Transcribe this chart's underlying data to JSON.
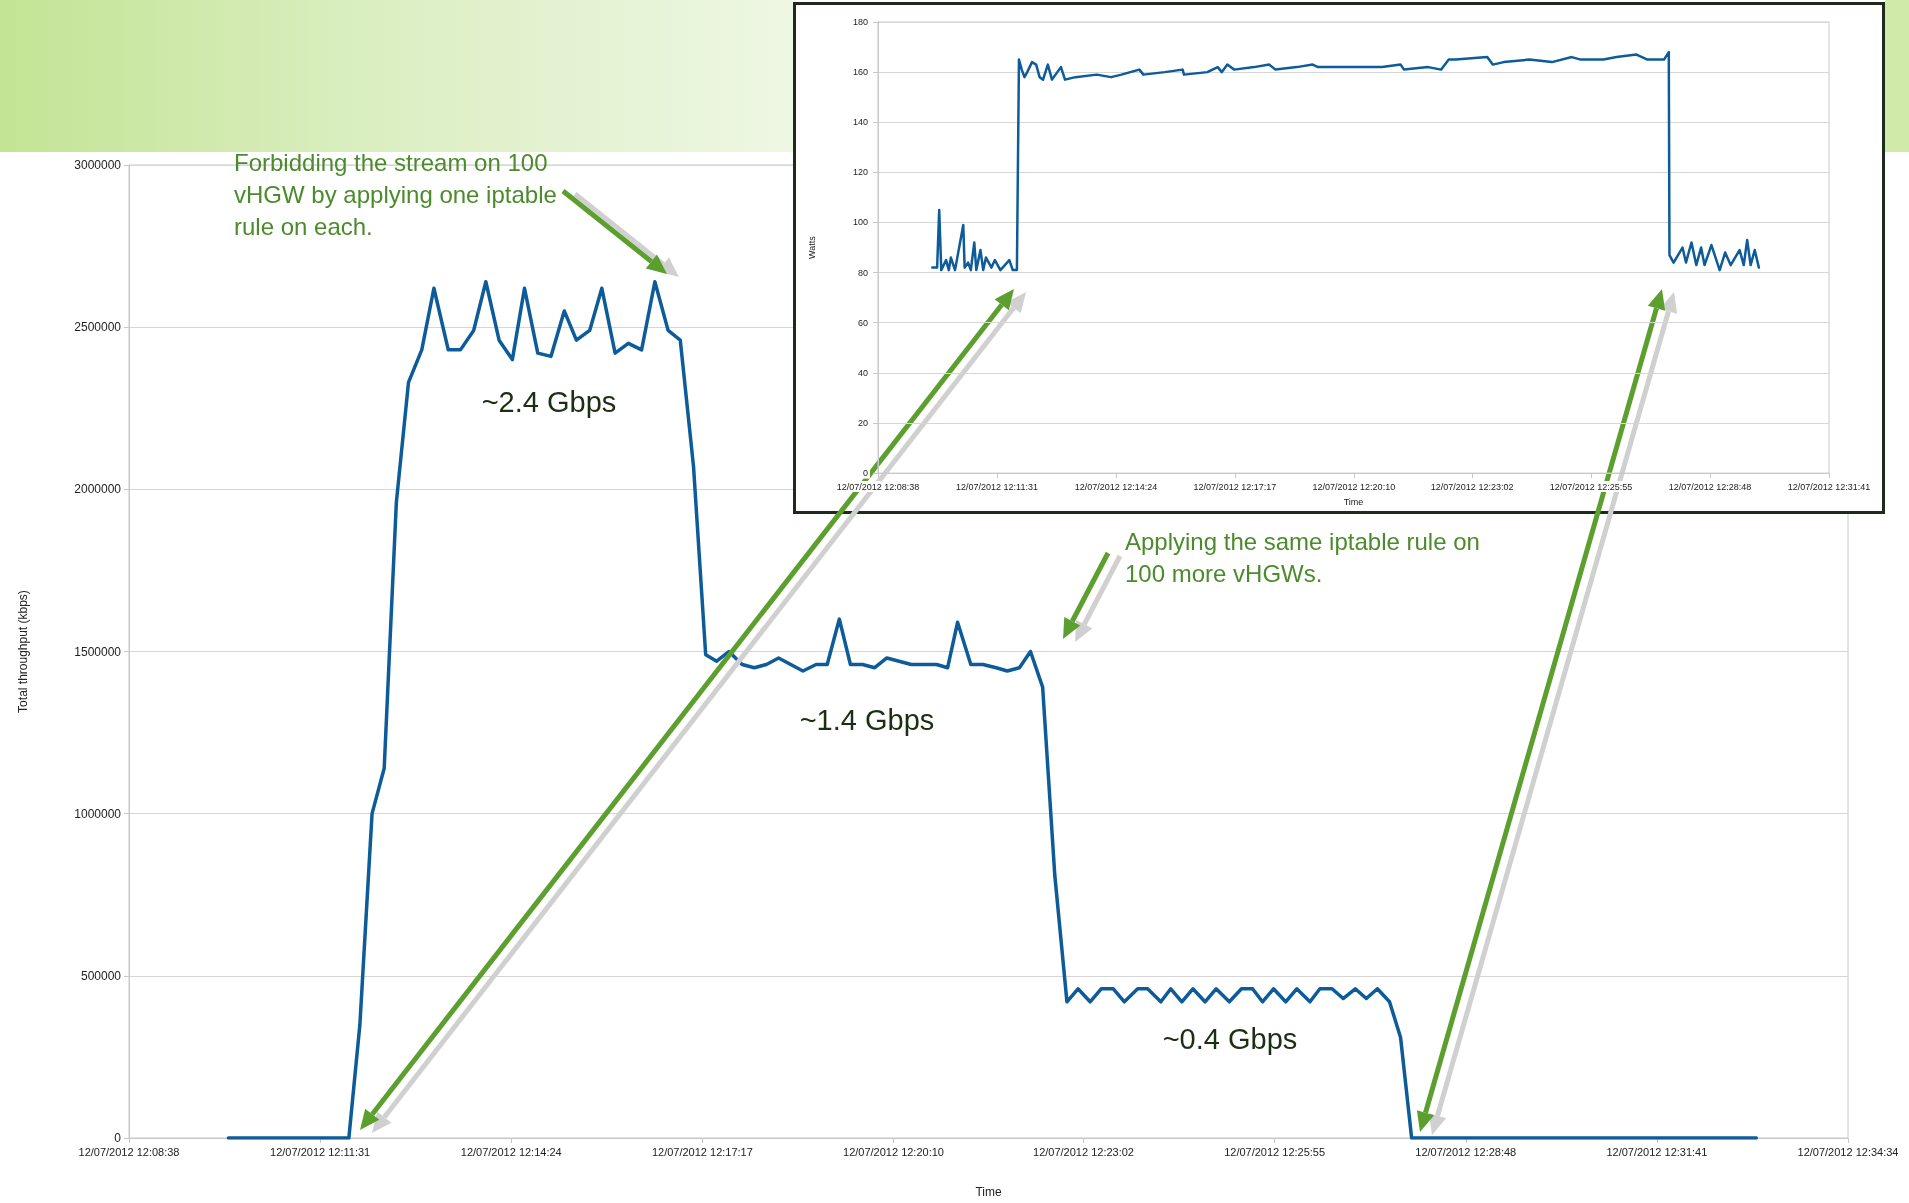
{
  "chart_data": [
    {
      "type": "line",
      "xlabel": "Time",
      "ylabel": "Total throughput (kbps)",
      "color": "#0d5c99",
      "grid": "y",
      "xlim": [
        "2012-07-12T12:08:38",
        "2012-07-12T12:34:34"
      ],
      "xticks": [
        {
          "value": "2012-07-12T12:08:38",
          "label": "12/07/2012 12:08:38"
        },
        {
          "value": "2012-07-12T12:11:31",
          "label": "12/07/2012 12:11:31"
        },
        {
          "value": "2012-07-12T12:14:24",
          "label": "12/07/2012 12:14:24"
        },
        {
          "value": "2012-07-12T12:17:17",
          "label": "12/07/2012 12:17:17"
        },
        {
          "value": "2012-07-12T12:20:10",
          "label": "12/07/2012 12:20:10"
        },
        {
          "value": "2012-07-12T12:23:02",
          "label": "12/07/2012 12:23:02"
        },
        {
          "value": "2012-07-12T12:25:55",
          "label": "12/07/2012 12:25:55"
        },
        {
          "value": "2012-07-12T12:28:48",
          "label": "12/07/2012 12:28:48"
        },
        {
          "value": "2012-07-12T12:31:41",
          "label": "12/07/2012 12:31:41"
        },
        {
          "value": "2012-07-12T12:34:34",
          "label": "12/07/2012 12:34:34"
        }
      ],
      "ylim": [
        0,
        3000000
      ],
      "yticks": [
        0,
        500000,
        1000000,
        1500000,
        2000000,
        2500000,
        3000000
      ],
      "x": [
        "2012-07-12T12:10:08",
        "2012-07-12T12:11:57",
        "2012-07-12T12:12:07",
        "2012-07-12T12:12:18",
        "2012-07-12T12:12:29",
        "2012-07-12T12:12:40",
        "2012-07-12T12:12:51",
        "2012-07-12T12:13:03",
        "2012-07-12T12:13:14",
        "2012-07-12T12:13:27",
        "2012-07-12T12:13:38",
        "2012-07-12T12:13:50",
        "2012-07-12T12:14:01",
        "2012-07-12T12:14:13",
        "2012-07-12T12:14:25",
        "2012-07-12T12:14:36",
        "2012-07-12T12:14:48",
        "2012-07-12T12:15:00",
        "2012-07-12T12:15:12",
        "2012-07-12T12:15:23",
        "2012-07-12T12:15:35",
        "2012-07-12T12:15:46",
        "2012-07-12T12:15:58",
        "2012-07-12T12:16:10",
        "2012-07-12T12:16:22",
        "2012-07-12T12:16:34",
        "2012-07-12T12:16:46",
        "2012-07-12T12:16:57",
        "2012-07-12T12:17:09",
        "2012-07-12T12:17:20",
        "2012-07-12T12:17:30",
        "2012-07-12T12:17:41",
        "2012-07-12T12:17:53",
        "2012-07-12T12:18:04",
        "2012-07-12T12:18:15",
        "2012-07-12T12:18:26",
        "2012-07-12T12:18:37",
        "2012-07-12T12:18:48",
        "2012-07-12T12:19:00",
        "2012-07-12T12:19:10",
        "2012-07-12T12:19:21",
        "2012-07-12T12:19:31",
        "2012-07-12T12:19:42",
        "2012-07-12T12:19:53",
        "2012-07-12T12:20:04",
        "2012-07-12T12:20:15",
        "2012-07-12T12:20:26",
        "2012-07-12T12:20:38",
        "2012-07-12T12:20:49",
        "2012-07-12T12:20:59",
        "2012-07-12T12:21:08",
        "2012-07-12T12:21:20",
        "2012-07-12T12:21:31",
        "2012-07-12T12:21:43",
        "2012-07-12T12:21:53",
        "2012-07-12T12:22:04",
        "2012-07-12T12:22:14",
        "2012-07-12T12:22:25",
        "2012-07-12T12:22:36",
        "2012-07-12T12:22:47",
        "2012-07-12T12:22:57",
        "2012-07-12T12:23:08",
        "2012-07-12T12:23:18",
        "2012-07-12T12:23:29",
        "2012-07-12T12:23:39",
        "2012-07-12T12:23:51",
        "2012-07-12T12:24:00",
        "2012-07-12T12:24:12",
        "2012-07-12T12:24:21",
        "2012-07-12T12:24:31",
        "2012-07-12T12:24:41",
        "2012-07-12T12:24:52",
        "2012-07-12T12:25:02",
        "2012-07-12T12:25:14",
        "2012-07-12T12:25:25",
        "2012-07-12T12:25:35",
        "2012-07-12T12:25:44",
        "2012-07-12T12:25:54",
        "2012-07-12T12:26:05",
        "2012-07-12T12:26:15",
        "2012-07-12T12:26:27",
        "2012-07-12T12:26:36",
        "2012-07-12T12:26:47",
        "2012-07-12T12:26:57",
        "2012-07-12T12:27:08",
        "2012-07-12T12:27:18",
        "2012-07-12T12:27:28",
        "2012-07-12T12:27:39",
        "2012-07-12T12:27:49",
        "2012-07-12T12:27:59",
        "2012-07-12T12:33:11"
      ],
      "values": [
        0,
        0,
        350000,
        1000000,
        1140000,
        1960000,
        2330000,
        2430000,
        2620000,
        2430000,
        2430000,
        2490000,
        2640000,
        2460000,
        2400000,
        2620000,
        2420000,
        2410000,
        2550000,
        2460000,
        2490000,
        2620000,
        2420000,
        2450000,
        2430000,
        2640000,
        2490000,
        2460000,
        2070000,
        1490000,
        1470000,
        1500000,
        1460000,
        1450000,
        1460000,
        1480000,
        1460000,
        1440000,
        1460000,
        1460000,
        1600000,
        1460000,
        1460000,
        1450000,
        1480000,
        1470000,
        1460000,
        1460000,
        1460000,
        1450000,
        1590000,
        1460000,
        1460000,
        1450000,
        1440000,
        1450000,
        1500000,
        1390000,
        810000,
        420000,
        460000,
        420000,
        460000,
        460000,
        420000,
        460000,
        460000,
        420000,
        460000,
        420000,
        460000,
        420000,
        460000,
        420000,
        460000,
        460000,
        420000,
        460000,
        420000,
        460000,
        420000,
        460000,
        460000,
        430000,
        460000,
        430000,
        460000,
        420000,
        310000,
        0,
        0
      ],
      "annotations": [
        "Forbidding the stream on 100 vHGW by applying one iptable rule on each.",
        "~2.4 Gbps",
        "Applying the same iptable rule on 100 more vHGWs.",
        "~1.4 Gbps",
        "~0.4 Gbps"
      ]
    },
    {
      "type": "line",
      "xlabel": "Time",
      "ylabel": "Watts",
      "color": "#0d5c99",
      "grid": "y",
      "xlim": [
        "2012-07-12T12:08:38",
        "2012-07-12T12:31:41"
      ],
      "xticks": [
        {
          "value": "2012-07-12T12:08:38",
          "label": "12/07/2012 12:08:38"
        },
        {
          "value": "2012-07-12T12:11:31",
          "label": "12/07/2012 12:11:31"
        },
        {
          "value": "2012-07-12T12:14:24",
          "label": "12/07/2012 12:14:24"
        },
        {
          "value": "2012-07-12T12:17:17",
          "label": "12/07/2012 12:17:17"
        },
        {
          "value": "2012-07-12T12:20:10",
          "label": "12/07/2012 12:20:10"
        },
        {
          "value": "2012-07-12T12:23:02",
          "label": "12/07/2012 12:23:02"
        },
        {
          "value": "2012-07-12T12:25:55",
          "label": "12/07/2012 12:25:55"
        },
        {
          "value": "2012-07-12T12:28:48",
          "label": "12/07/2012 12:28:48"
        },
        {
          "value": "2012-07-12T12:31:41",
          "label": "12/07/2012 12:31:41"
        }
      ],
      "ylim": [
        0,
        180
      ],
      "yticks": [
        0,
        20,
        40,
        60,
        80,
        100,
        120,
        140,
        160,
        180
      ],
      "x": [
        "2012-07-12T12:09:57",
        "2012-07-12T12:10:04",
        "2012-07-12T12:10:07",
        "2012-07-12T12:10:10",
        "2012-07-12T12:10:17",
        "2012-07-12T12:10:21",
        "2012-07-12T12:10:24",
        "2012-07-12T12:10:30",
        "2012-07-12T12:10:42",
        "2012-07-12T12:10:44",
        "2012-07-12T12:10:49",
        "2012-07-12T12:10:53",
        "2012-07-12T12:10:58",
        "2012-07-12T12:11:01",
        "2012-07-12T12:11:07",
        "2012-07-12T12:11:11",
        "2012-07-12T12:11:15",
        "2012-07-12T12:11:23",
        "2012-07-12T12:11:28",
        "2012-07-12T12:11:36",
        "2012-07-12T12:11:49",
        "2012-07-12T12:11:54",
        "2012-07-12T12:12:00",
        "2012-07-12T12:12:03",
        "2012-07-12T12:12:07",
        "2012-07-12T12:12:11",
        "2012-07-12T12:12:15",
        "2012-07-12T12:12:22",
        "2012-07-12T12:12:28",
        "2012-07-12T12:12:33",
        "2012-07-12T12:12:38",
        "2012-07-12T12:12:45",
        "2012-07-12T12:12:51",
        "2012-07-12T12:13:04",
        "2012-07-12T12:13:10",
        "2012-07-12T12:13:25",
        "2012-07-12T12:13:56",
        "2012-07-12T12:14:17",
        "2012-07-12T12:14:32",
        "2012-07-12T12:14:58",
        "2012-07-12T12:15:04",
        "2012-07-12T12:15:35",
        "2012-07-12T12:16:01",
        "2012-07-12T12:16:03",
        "2012-07-12T12:16:37",
        "2012-07-12T12:16:52",
        "2012-07-12T12:16:58",
        "2012-07-12T12:17:06",
        "2012-07-12T12:17:16",
        "2012-07-12T12:17:45",
        "2012-07-12T12:18:07",
        "2012-07-12T12:18:16",
        "2012-07-12T12:18:47",
        "2012-07-12T12:19:10",
        "2012-07-12T12:19:18",
        "2012-07-12T12:20:00",
        "2012-07-12T12:20:13",
        "2012-07-12T12:20:51",
        "2012-07-12T12:21:18",
        "2012-07-12T12:21:23",
        "2012-07-12T12:21:58",
        "2012-07-12T12:22:17",
        "2012-07-12T12:22:28",
        "2012-07-12T12:22:38",
        "2012-07-12T12:23:24",
        "2012-07-12T12:23:32",
        "2012-07-12T12:23:48",
        "2012-07-12T12:24:25",
        "2012-07-12T12:24:58",
        "2012-07-12T12:25:27",
        "2012-07-12T12:25:40",
        "2012-07-12T12:26:13",
        "2012-07-12T12:26:32",
        "2012-07-12T12:27:01",
        "2012-07-12T12:27:17",
        "2012-07-12T12:27:41",
        "2012-07-12T12:27:48",
        "2012-07-12T12:27:49",
        "2012-07-12T12:27:55",
        "2012-07-12T12:28:08",
        "2012-07-12T12:28:13",
        "2012-07-12T12:28:21",
        "2012-07-12T12:28:28",
        "2012-07-12T12:28:35",
        "2012-07-12T12:28:40",
        "2012-07-12T12:28:50",
        "2012-07-12T12:29:02",
        "2012-07-12T12:29:10",
        "2012-07-12T12:29:18",
        "2012-07-12T12:29:31",
        "2012-07-12T12:29:37",
        "2012-07-12T12:29:42",
        "2012-07-12T12:29:47",
        "2012-07-12T12:29:53",
        "2012-07-12T12:29:59"
      ],
      "values": [
        82,
        82,
        105,
        81,
        85,
        81,
        86,
        81,
        99,
        82,
        84,
        81,
        92,
        81,
        89,
        81,
        86,
        82,
        85,
        81,
        85,
        81,
        81,
        165,
        161,
        158,
        160,
        164,
        163,
        158,
        157,
        163,
        157,
        162,
        157,
        158,
        159,
        158,
        159,
        161,
        159,
        160,
        161,
        159,
        160,
        162,
        160,
        163,
        161,
        162,
        163,
        161,
        162,
        163,
        162,
        162,
        162,
        162,
        163,
        161,
        162,
        161,
        165,
        165,
        166,
        163,
        164,
        165,
        164,
        166,
        165,
        165,
        166,
        167,
        165,
        165,
        168,
        87,
        84,
        90,
        84,
        92,
        83,
        90,
        83,
        91,
        81,
        88,
        83,
        89,
        83,
        93,
        83,
        89,
        82
      ]
    }
  ]
}
